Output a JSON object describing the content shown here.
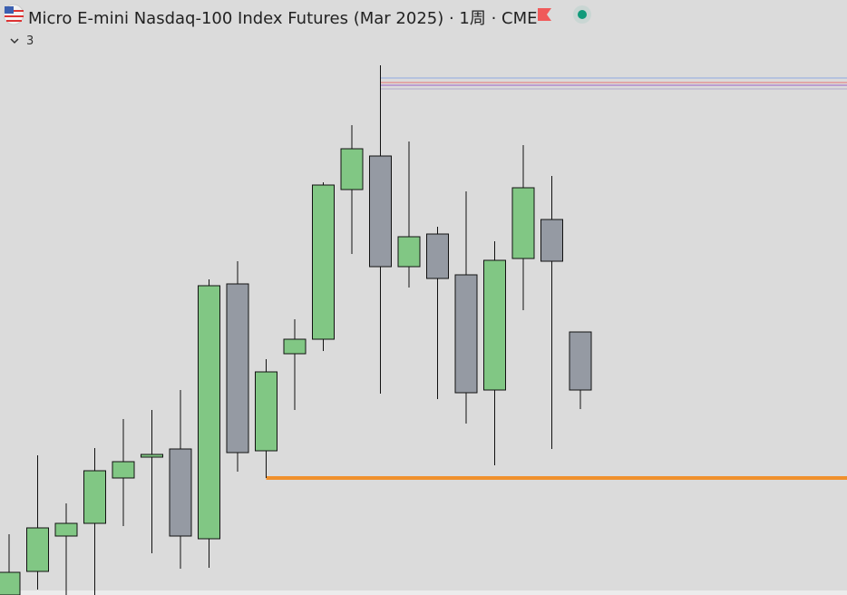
{
  "header": {
    "title": "Micro E-mini Nasdaq-100 Index Futures (Mar 2025) · 1周 · CME",
    "count": "3"
  },
  "chart_data": {
    "type": "candlestick",
    "up_color": "#81c784",
    "down_color": "#959aa3",
    "ylim": [
      19876,
      22500
    ],
    "open": [
      19876,
      19980,
      20136,
      20192,
      20392,
      20484,
      20520,
      20124,
      21248,
      20512,
      20940,
      21004,
      21664,
      21812,
      21324,
      21468,
      21288,
      20780,
      21360,
      21532,
      21036
    ],
    "close": [
      19976,
      20172,
      20192,
      20424,
      20464,
      20496,
      20136,
      21240,
      20504,
      20860,
      21004,
      21684,
      21844,
      21324,
      21456,
      21272,
      20768,
      21352,
      21672,
      21348,
      20780
    ],
    "high": [
      20144,
      20492,
      20280,
      20524,
      20652,
      20692,
      20780,
      21268,
      21348,
      20916,
      21092,
      21696,
      21948,
      22212,
      21876,
      21500,
      21656,
      21436,
      21860,
      21724,
      21036
    ],
    "low": [
      19820,
      19900,
      19860,
      19844,
      20180,
      20060,
      19992,
      19996,
      20420,
      20392,
      20692,
      20952,
      21380,
      20764,
      21232,
      20740,
      20632,
      20448,
      21132,
      20520,
      20696
    ],
    "levels": [
      {
        "value": 20392,
        "color": "#f0902c"
      },
      {
        "value": 22156,
        "color": "#8fa8e0"
      },
      {
        "value": 22136,
        "color": "#e57373"
      },
      {
        "value": 22124,
        "color": "#9c5fc4"
      },
      {
        "value": 22108,
        "color": "#b0a8c8"
      }
    ]
  }
}
